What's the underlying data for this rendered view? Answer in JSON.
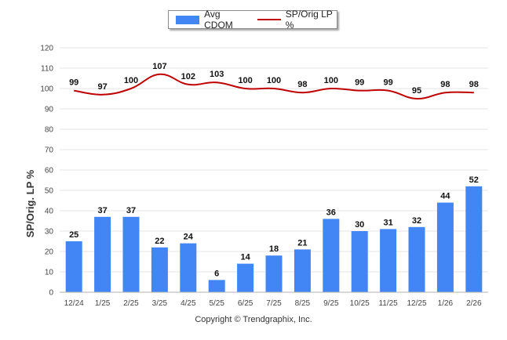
{
  "chart_data": {
    "type": "bar",
    "title": "",
    "xlabel": "",
    "ylabel": "SP/Orig. LP %",
    "ylim": [
      0,
      120
    ],
    "yticks": [
      0,
      10,
      20,
      30,
      40,
      50,
      60,
      70,
      80,
      90,
      100,
      110,
      120
    ],
    "grid": true,
    "legend_position": "top-center",
    "categories": [
      "12/24",
      "1/25",
      "2/25",
      "3/25",
      "4/25",
      "5/25",
      "6/25",
      "7/25",
      "8/25",
      "9/25",
      "10/25",
      "11/25",
      "12/25",
      "1/26",
      "2/26"
    ],
    "series": [
      {
        "name": "Avg CDOM",
        "kind": "bar",
        "color": "#4285f4",
        "values": [
          25,
          37,
          37,
          22,
          24,
          6,
          14,
          18,
          21,
          36,
          30,
          31,
          32,
          44,
          52
        ]
      },
      {
        "name": "SP/Orig LP %",
        "kind": "line",
        "color": "#c00000",
        "values": [
          99,
          97,
          100,
          107,
          102,
          103,
          100,
          100,
          98,
          100,
          99,
          99,
          95,
          98,
          98
        ]
      }
    ]
  },
  "footer": "Copyright © Trendgraphix, Inc."
}
